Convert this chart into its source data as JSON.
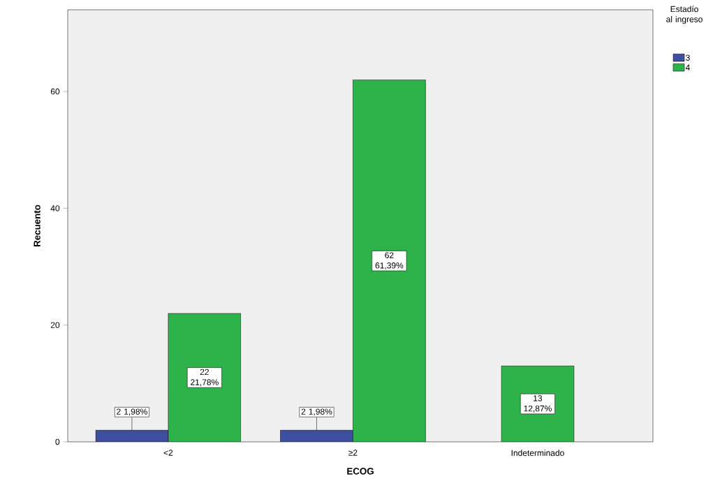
{
  "chart_data": {
    "type": "bar",
    "xlabel": "ECOG",
    "ylabel": "Recuento",
    "legend_title": "Estadío al ingreso",
    "legend": "top right",
    "categories": [
      "<2",
      "≥2",
      "Indeterminado"
    ],
    "series": [
      {
        "name": "3",
        "color": "#3e4fa0",
        "values": [
          2,
          2,
          null
        ],
        "value_labels": [
          "2 1,98%",
          "2 1,98%",
          null
        ]
      },
      {
        "name": "4",
        "color": "#2db34a",
        "values": [
          22,
          62,
          13
        ],
        "value_labels": [
          "22 21,78%",
          "62 61,39%",
          "13 12,87%"
        ]
      }
    ],
    "ylim": [
      0,
      74
    ],
    "yticks": [
      0,
      20,
      40,
      60
    ],
    "grid": false
  }
}
